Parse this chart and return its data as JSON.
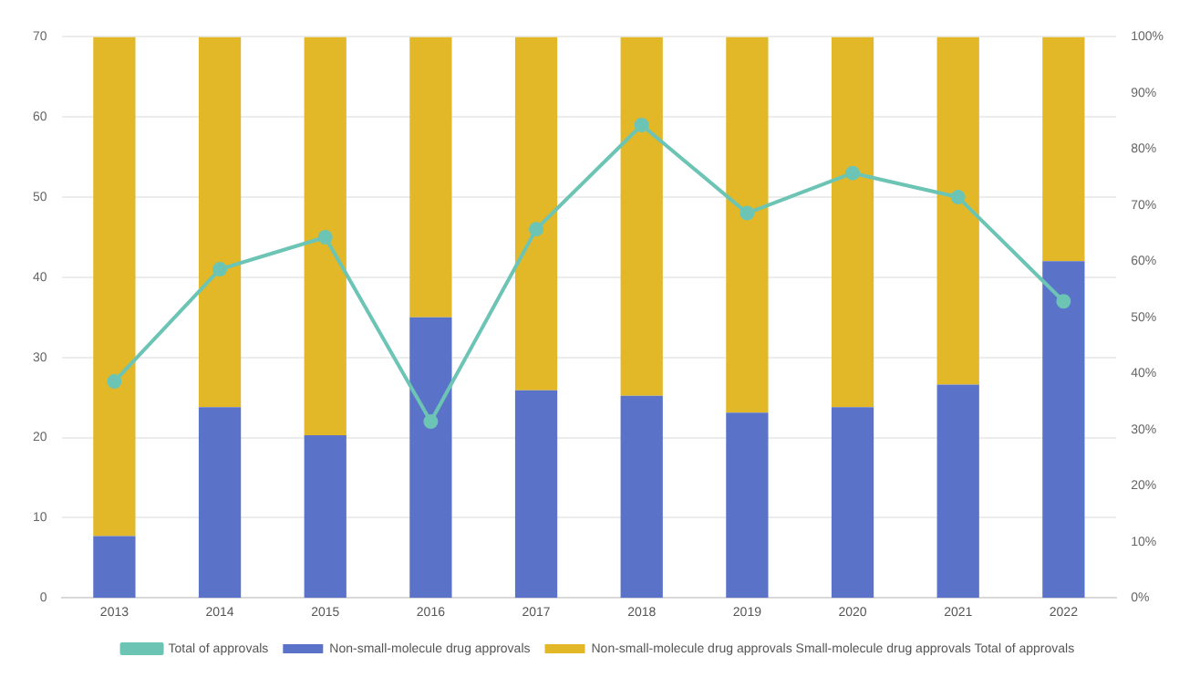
{
  "chart_data": {
    "type": "bar",
    "stacked": true,
    "grid": "y",
    "legend": "bottom",
    "marker": "circle",
    "categories": [
      "2013",
      "2014",
      "2015",
      "2016",
      "2017",
      "2018",
      "2019",
      "2020",
      "2021",
      "2022"
    ],
    "series": [
      {
        "name": "Non-small-molecule drug approvals",
        "color": "#5a73c8",
        "axis": "y2",
        "values": [
          11,
          34,
          29,
          50,
          37,
          36,
          33,
          34,
          38,
          60
        ]
      },
      {
        "name": "Non-small-molecule drug approvals Small-molecule drug approvals Total of approvals",
        "color": "#e2b829",
        "axis": "y2",
        "values": [
          89,
          66,
          71,
          50,
          63,
          64,
          67,
          66,
          62,
          40
        ]
      },
      {
        "name": "Total of approvals",
        "type": "line",
        "color": "#6cc4b4",
        "axis": "y",
        "values": [
          27,
          41,
          45,
          22,
          46,
          59,
          48,
          53,
          50,
          37
        ]
      }
    ],
    "ylim": [
      0,
      70
    ],
    "yticks": [
      0,
      10,
      20,
      30,
      40,
      50,
      60,
      70
    ],
    "y2lim": [
      0,
      100
    ],
    "y2ticks": [
      {
        "value": 0,
        "label": "0%"
      },
      {
        "value": 10,
        "label": "10%"
      },
      {
        "value": 20,
        "label": "20%"
      },
      {
        "value": 30,
        "label": "30%"
      },
      {
        "value": 40,
        "label": "40%"
      },
      {
        "value": 50,
        "label": "50%"
      },
      {
        "value": 60,
        "label": "60%"
      },
      {
        "value": 70,
        "label": "70%"
      },
      {
        "value": 80,
        "label": "80%"
      },
      {
        "value": 90,
        "label": "90%"
      },
      {
        "value": 100,
        "label": "100%"
      }
    ]
  }
}
